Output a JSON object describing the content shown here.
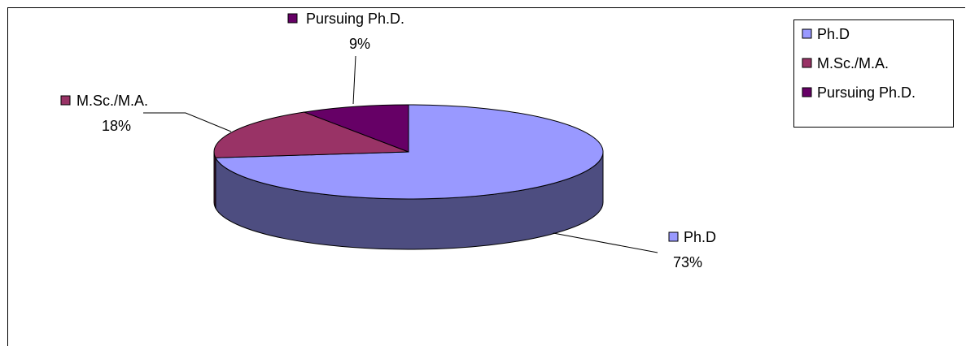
{
  "chart_data": {
    "type": "pie",
    "style": "3d-exploded-labels",
    "title": "",
    "categories": [
      "Ph.D",
      "M.Sc./M.A.",
      "Pursuing Ph.D."
    ],
    "values": [
      73,
      18,
      9
    ],
    "value_labels": [
      "73%",
      "18%",
      "9%"
    ],
    "colors": [
      "#9999ff",
      "#993366",
      "#660066"
    ],
    "side_colors": [
      "#4d4d80",
      "#4d1a33",
      "#330033"
    ],
    "legend": {
      "position": "top-right",
      "entries": [
        "Ph.D",
        "M.Sc./M.A.",
        "Pursuing Ph.D."
      ]
    },
    "data_labels": {
      "show_category": true,
      "show_percent": true,
      "leader_lines": true
    }
  }
}
